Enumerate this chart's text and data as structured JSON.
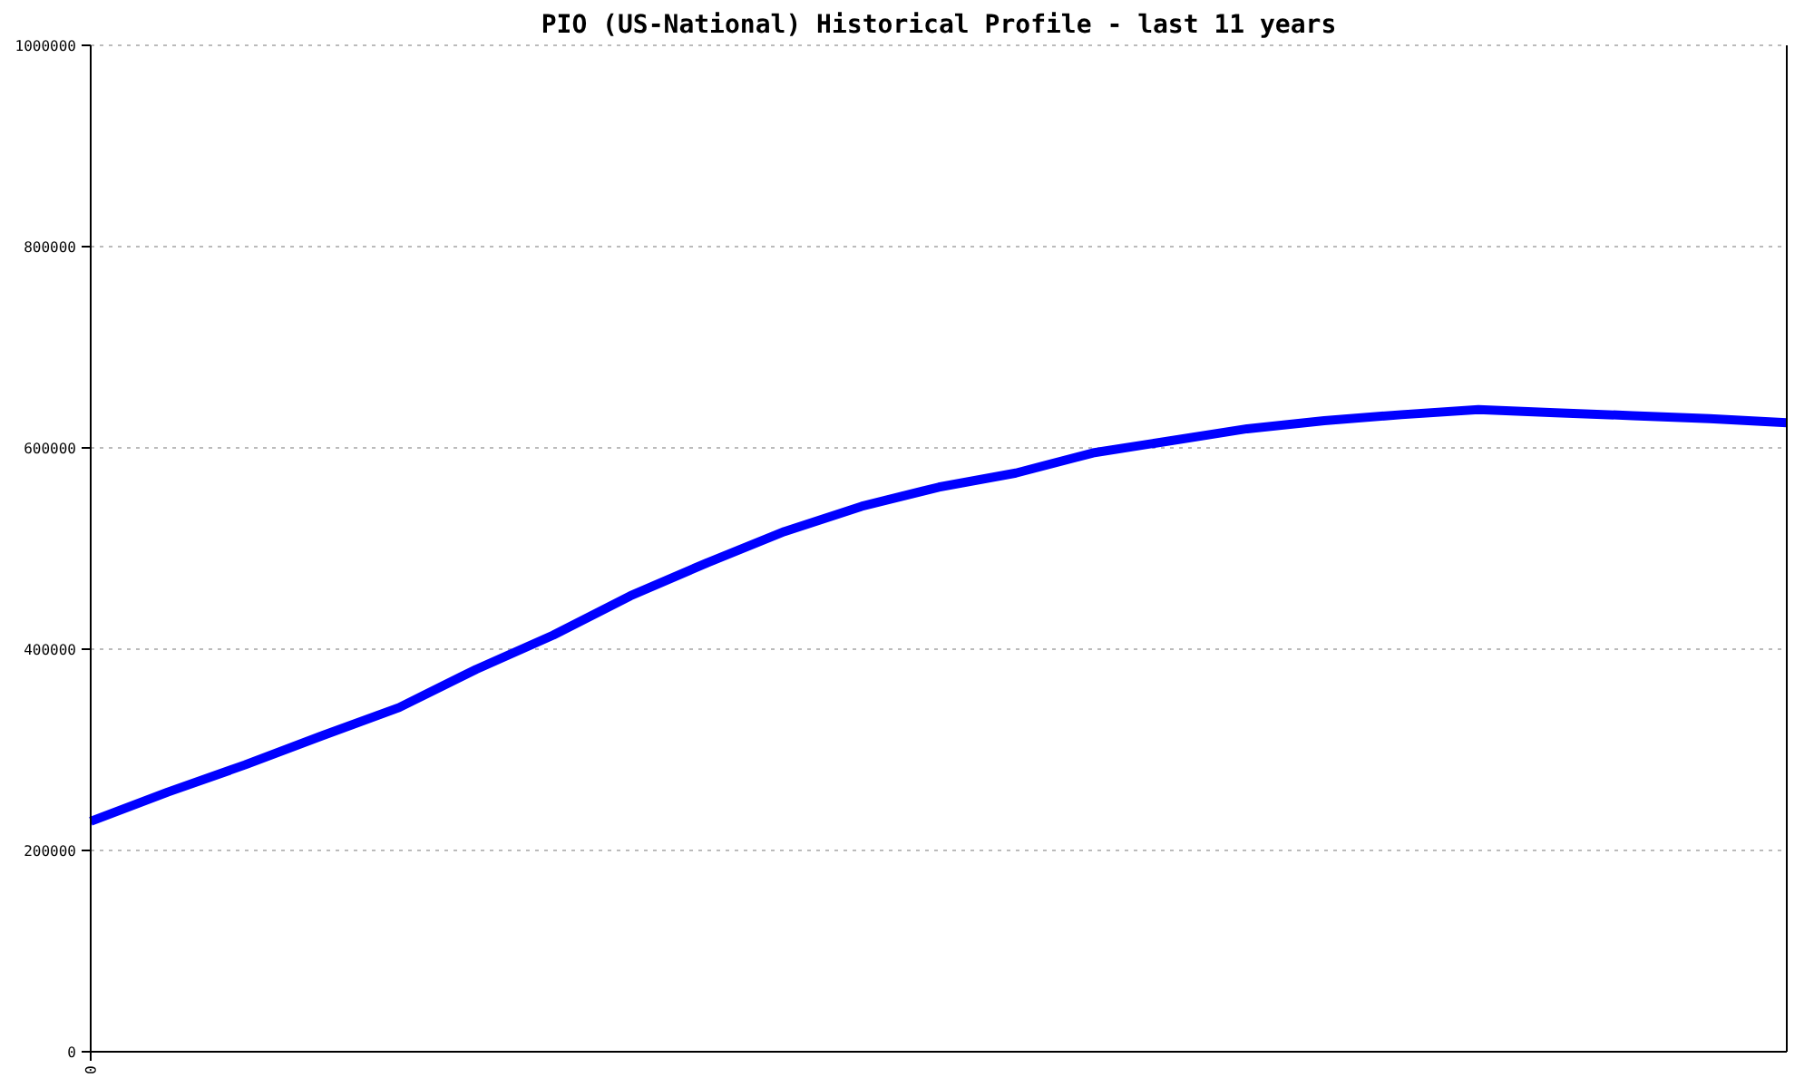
{
  "chart_data": {
    "type": "line",
    "title": "PIO (US-National) Historical Profile - last 11 years",
    "categories": [
      "0",
      null,
      null,
      null,
      null,
      null,
      null,
      null,
      null,
      null,
      null,
      null,
      null,
      null,
      null,
      null,
      null,
      null,
      null,
      null,
      null,
      null,
      null
    ],
    "series": [
      {
        "color": "#0000ff",
        "values": [
          229000,
          258000,
          285000,
          314000,
          342000,
          380000,
          414000,
          453000,
          486000,
          517000,
          542000,
          561000,
          575000,
          595000,
          607000,
          619000,
          627000,
          633000,
          638000,
          635000,
          632000,
          629000,
          625000
        ]
      }
    ],
    "ylim": [
      0,
      1000000
    ],
    "yticks": [
      0,
      200000,
      400000,
      600000,
      800000,
      1000000
    ],
    "grid": "y",
    "marker": "none",
    "line_style": "solid"
  }
}
